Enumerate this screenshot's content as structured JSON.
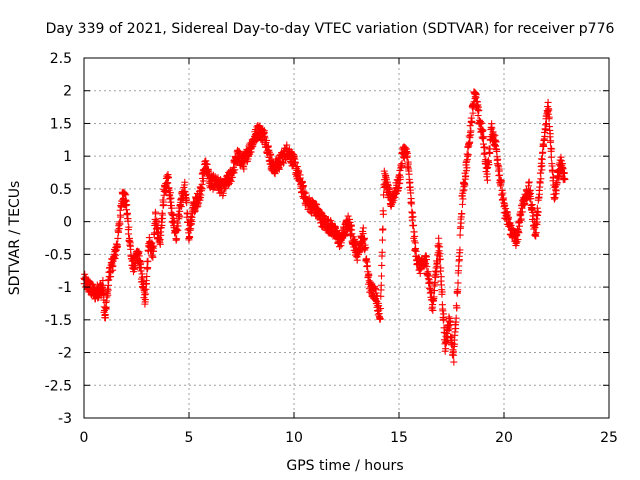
{
  "chart_data": {
    "type": "scatter",
    "title": "Day 339 of 2021, Sidereal Day-to-day VTEC variation (SDTVAR) for receiver p776",
    "xlabel": "GPS time / hours",
    "ylabel": "SDTVAR / TECUs",
    "xlim": [
      0,
      25
    ],
    "ylim": [
      -3,
      2.5
    ],
    "xticks": [
      "0",
      "5",
      "10",
      "15",
      "20",
      "25"
    ],
    "yticks": [
      "2.5",
      "2",
      "1.5",
      "1",
      "0.5",
      "0",
      "-0.5",
      "-1",
      "-1.5",
      "-2",
      "-2.5",
      "-3"
    ],
    "grid": true,
    "marker": "plus",
    "marker_color": "#ff0000",
    "series": [
      {
        "name": "p776",
        "x": [
          0.0,
          0.5,
          0.9,
          1.0,
          1.2,
          1.4,
          1.6,
          1.7,
          1.8,
          2.0,
          2.3,
          2.6,
          2.9,
          3.1,
          3.3,
          3.4,
          3.6,
          3.8,
          4.0,
          4.2,
          4.4,
          4.6,
          4.8,
          5.0,
          5.2,
          5.5,
          5.8,
          6.0,
          6.3,
          6.6,
          7.0,
          7.3,
          7.6,
          8.0,
          8.3,
          8.6,
          9.0,
          9.3,
          9.7,
          10.0,
          10.3,
          10.6,
          11.0,
          11.4,
          11.8,
          12.2,
          12.6,
          13.0,
          13.3,
          13.6,
          13.9,
          14.1,
          14.3,
          14.6,
          15.0,
          15.2,
          15.4,
          15.6,
          15.8,
          16.0,
          16.3,
          16.6,
          16.9,
          17.2,
          17.4,
          17.6,
          17.8,
          18.0,
          18.3,
          18.6,
          18.8,
          19.0,
          19.2,
          19.4,
          19.6,
          19.8,
          20.0,
          20.3,
          20.6,
          20.9,
          21.2,
          21.5,
          21.8,
          22.1,
          22.4,
          22.7,
          22.9
        ],
        "y": [
          -0.9,
          -1.1,
          -1.0,
          -1.5,
          -0.8,
          -0.6,
          -0.3,
          0.0,
          0.4,
          0.3,
          -0.7,
          -0.5,
          -1.2,
          -0.3,
          -0.5,
          0.1,
          -0.4,
          0.4,
          0.7,
          0.1,
          -0.2,
          0.3,
          0.5,
          -0.2,
          0.2,
          0.4,
          0.9,
          0.6,
          0.6,
          0.5,
          0.7,
          1.0,
          0.9,
          1.2,
          1.4,
          1.3,
          0.8,
          0.9,
          1.1,
          0.9,
          0.6,
          0.3,
          0.2,
          0.0,
          -0.1,
          -0.3,
          0.0,
          -0.5,
          -0.2,
          -1.0,
          -1.1,
          -1.5,
          0.7,
          0.3,
          0.6,
          1.1,
          1.0,
          0.2,
          -0.5,
          -0.7,
          -0.6,
          -1.3,
          -0.3,
          -1.9,
          -1.5,
          -2.1,
          -1.0,
          0.3,
          1.1,
          2.0,
          1.6,
          1.3,
          0.7,
          1.4,
          1.2,
          0.7,
          0.2,
          -0.1,
          -0.3,
          0.3,
          0.5,
          -0.2,
          0.9,
          1.8,
          0.4,
          0.9,
          0.6
        ]
      }
    ]
  }
}
